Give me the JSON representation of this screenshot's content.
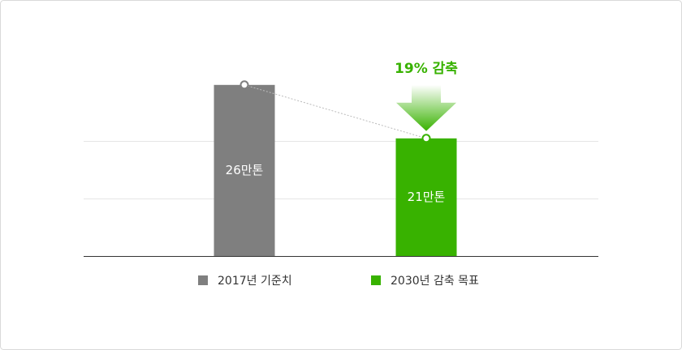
{
  "chart_data": {
    "type": "bar",
    "categories": [
      "2017년 기준치",
      "2030년 감축 목표"
    ],
    "values": [
      26,
      21
    ],
    "value_labels": [
      "26만톤",
      "21만톤"
    ],
    "colors": [
      "#7f7f7f",
      "#38b200"
    ],
    "annotation": "19% 감축",
    "ylim": [
      10,
      30
    ],
    "legend": "bottom"
  }
}
